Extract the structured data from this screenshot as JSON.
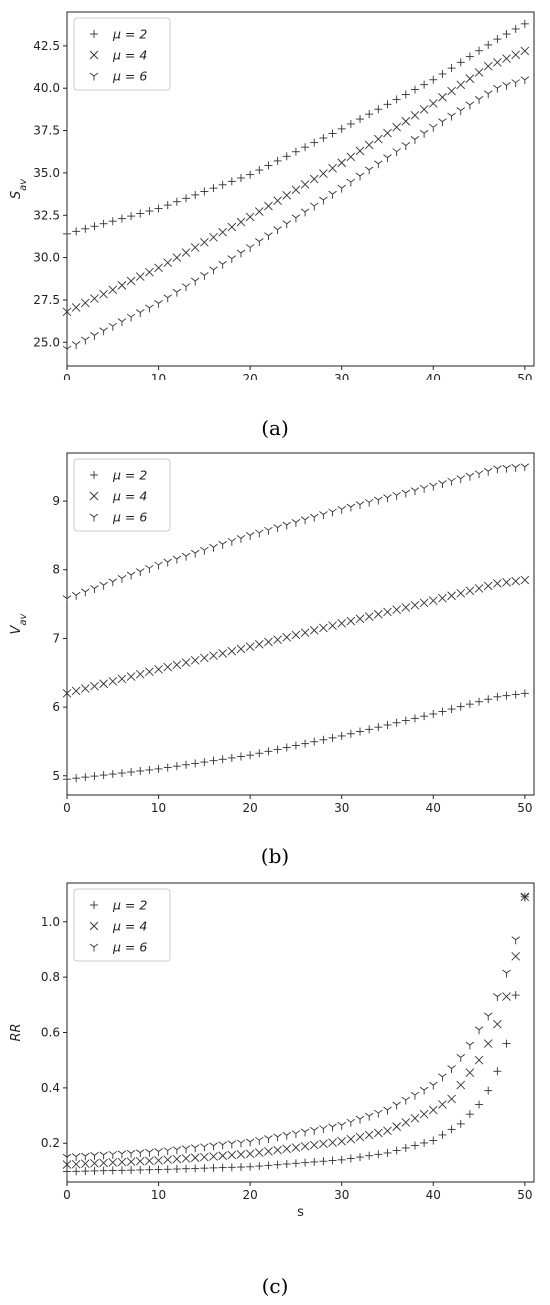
{
  "chart_data": [
    {
      "type": "scatter",
      "title": "",
      "xlabel": "s",
      "ylabel_main": "S",
      "ylabel_sub": "av",
      "xlim": [
        0,
        51
      ],
      "ylim": [
        23.6,
        44.5
      ],
      "xticks": [
        0,
        10,
        20,
        30,
        40,
        50
      ],
      "yticks": [
        25.0,
        27.5,
        30.0,
        32.5,
        35.0,
        37.5,
        40.0,
        42.5
      ],
      "ytick_decimals": 1,
      "grid": false,
      "legend_position": "top-left",
      "caption": "(a)",
      "series": [
        {
          "name": "μ = 2",
          "marker": "plus",
          "x_start": 0,
          "x_end": 50,
          "knots": [
            [
              0,
              31.4
            ],
            [
              10,
              32.9
            ],
            [
              20,
              34.9
            ],
            [
              30,
              37.6
            ],
            [
              40,
              40.5
            ],
            [
              47,
              42.9
            ],
            [
              50,
              43.8
            ]
          ]
        },
        {
          "name": "μ = 4",
          "marker": "x",
          "x_start": 0,
          "x_end": 50,
          "knots": [
            [
              0,
              26.8
            ],
            [
              10,
              29.4
            ],
            [
              20,
              32.4
            ],
            [
              30,
              35.6
            ],
            [
              40,
              39.1
            ],
            [
              46,
              41.3
            ],
            [
              50,
              42.2
            ]
          ]
        },
        {
          "name": "μ = 6",
          "marker": "tri",
          "x_start": 0,
          "x_end": 50,
          "knots": [
            [
              0,
              24.6
            ],
            [
              10,
              27.3
            ],
            [
              20,
              30.6
            ],
            [
              30,
              34.1
            ],
            [
              40,
              37.7
            ],
            [
              47,
              40.0
            ],
            [
              50,
              40.5
            ]
          ]
        }
      ]
    },
    {
      "type": "scatter",
      "title": "",
      "xlabel": "s",
      "ylabel_main": "V",
      "ylabel_sub": "av",
      "xlim": [
        0,
        51
      ],
      "ylim": [
        4.72,
        9.7
      ],
      "xticks": [
        0,
        10,
        20,
        30,
        40,
        50
      ],
      "yticks": [
        5,
        6,
        7,
        8,
        9
      ],
      "ytick_decimals": 0,
      "grid": false,
      "legend_position": "top-left",
      "caption": "(b)",
      "series": [
        {
          "name": "μ = 2",
          "marker": "plus",
          "x_start": 0,
          "x_end": 50,
          "knots": [
            [
              0,
              4.95
            ],
            [
              10,
              5.1
            ],
            [
              20,
              5.3
            ],
            [
              30,
              5.58
            ],
            [
              40,
              5.9
            ],
            [
              47,
              6.15
            ],
            [
              50,
              6.2
            ]
          ]
        },
        {
          "name": "μ = 4",
          "marker": "x",
          "x_start": 0,
          "x_end": 50,
          "knots": [
            [
              0,
              6.2
            ],
            [
              10,
              6.55
            ],
            [
              20,
              6.88
            ],
            [
              30,
              7.22
            ],
            [
              40,
              7.55
            ],
            [
              47,
              7.8
            ],
            [
              50,
              7.85
            ]
          ]
        },
        {
          "name": "μ = 6",
          "marker": "tri",
          "x_start": 0,
          "x_end": 50,
          "knots": [
            [
              0,
              7.58
            ],
            [
              10,
              8.07
            ],
            [
              20,
              8.5
            ],
            [
              30,
              8.88
            ],
            [
              40,
              9.22
            ],
            [
              47,
              9.47
            ],
            [
              50,
              9.5
            ]
          ]
        }
      ]
    },
    {
      "type": "scatter",
      "title": "",
      "xlabel": "s",
      "ylabel_main": "RR",
      "ylabel_sub": "",
      "xlim": [
        0,
        51
      ],
      "ylim": [
        0.06,
        1.14
      ],
      "xticks": [
        0,
        10,
        20,
        30,
        40,
        50
      ],
      "yticks": [
        0.2,
        0.4,
        0.6,
        0.8,
        1.0
      ],
      "ytick_decimals": 1,
      "grid": false,
      "legend_position": "top-left",
      "caption": "(c)",
      "series": [
        {
          "name": "μ = 2",
          "marker": "plus",
          "x_start": 0,
          "x_end": 50,
          "knots": [
            [
              0,
              0.098
            ],
            [
              10,
              0.105
            ],
            [
              20,
              0.115
            ],
            [
              30,
              0.14
            ],
            [
              35,
              0.165
            ],
            [
              40,
              0.21
            ],
            [
              43,
              0.27
            ],
            [
              45,
              0.34
            ],
            [
              46,
              0.39
            ],
            [
              47,
              0.46
            ],
            [
              48,
              0.56
            ],
            [
              49,
              0.735
            ],
            [
              50,
              1.09
            ]
          ]
        },
        {
          "name": "μ = 4",
          "marker": "x",
          "x_start": 0,
          "x_end": 50,
          "knots": [
            [
              0,
              0.123
            ],
            [
              10,
              0.138
            ],
            [
              20,
              0.162
            ],
            [
              30,
              0.207
            ],
            [
              35,
              0.245
            ],
            [
              40,
              0.32
            ],
            [
              42,
              0.36
            ],
            [
              43,
              0.41
            ],
            [
              44,
              0.455
            ],
            [
              45,
              0.5
            ],
            [
              46,
              0.56
            ],
            [
              47,
              0.63
            ],
            [
              48,
              0.73
            ],
            [
              49,
              0.875
            ],
            [
              50,
              1.09
            ]
          ]
        },
        {
          "name": "μ = 6",
          "marker": "tri",
          "x_start": 0,
          "x_end": 50,
          "knots": [
            [
              0,
              0.15
            ],
            [
              10,
              0.17
            ],
            [
              20,
              0.205
            ],
            [
              30,
              0.265
            ],
            [
              35,
              0.32
            ],
            [
              40,
              0.41
            ],
            [
              42,
              0.47
            ],
            [
              43,
              0.51
            ],
            [
              44,
              0.555
            ],
            [
              45,
              0.61
            ],
            [
              46,
              0.66
            ],
            [
              47,
              0.73
            ],
            [
              48,
              0.815
            ],
            [
              49,
              0.935
            ],
            [
              50,
              1.09
            ]
          ]
        }
      ]
    }
  ]
}
